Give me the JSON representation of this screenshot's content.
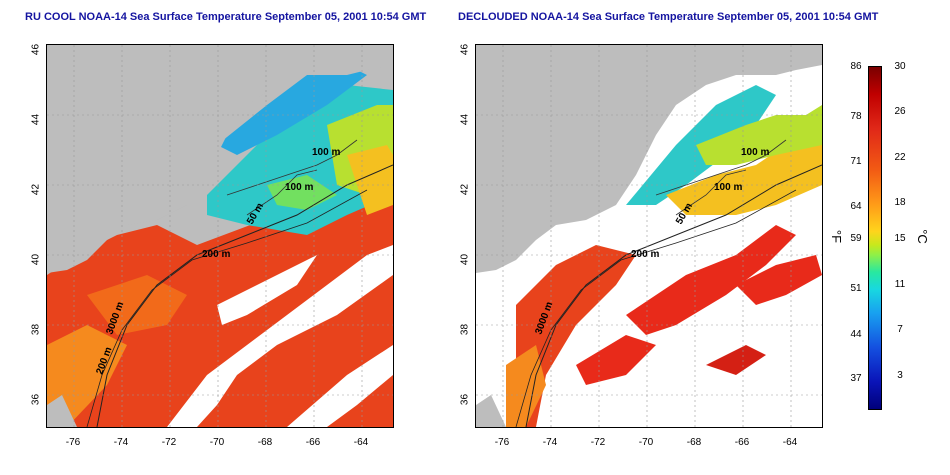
{
  "titles": {
    "left": "RU COOL NOAA-14 Sea Surface Temperature September 05, 2001 10:54 GMT",
    "right": "DECLOUDED NOAA-14 Sea Surface Temperature September 05, 2001 10:54 GMT"
  },
  "axes": {
    "lat_ticks": [
      "46",
      "44",
      "42",
      "40",
      "38",
      "36"
    ],
    "lon_ticks": [
      "-76",
      "-74",
      "-72",
      "-70",
      "-68",
      "-66",
      "-64"
    ]
  },
  "contour_labels": {
    "c100a": "100 m",
    "c100b": "100 m",
    "c50": "50 m",
    "c200": "200 m",
    "c3000": "3000 m",
    "c200s": "200 m"
  },
  "colorbar": {
    "fahrenheit_ticks": [
      "86",
      "78",
      "71",
      "64",
      "59",
      "51",
      "44",
      "37"
    ],
    "celsius_ticks": [
      "30",
      "26",
      "22",
      "18",
      "15",
      "11",
      "7",
      "3"
    ],
    "unit_f": "°F",
    "unit_c": "°C"
  },
  "colors": {
    "title": "#1414a0",
    "land": "#bdbdbd",
    "cloud": "#ffffff"
  }
}
